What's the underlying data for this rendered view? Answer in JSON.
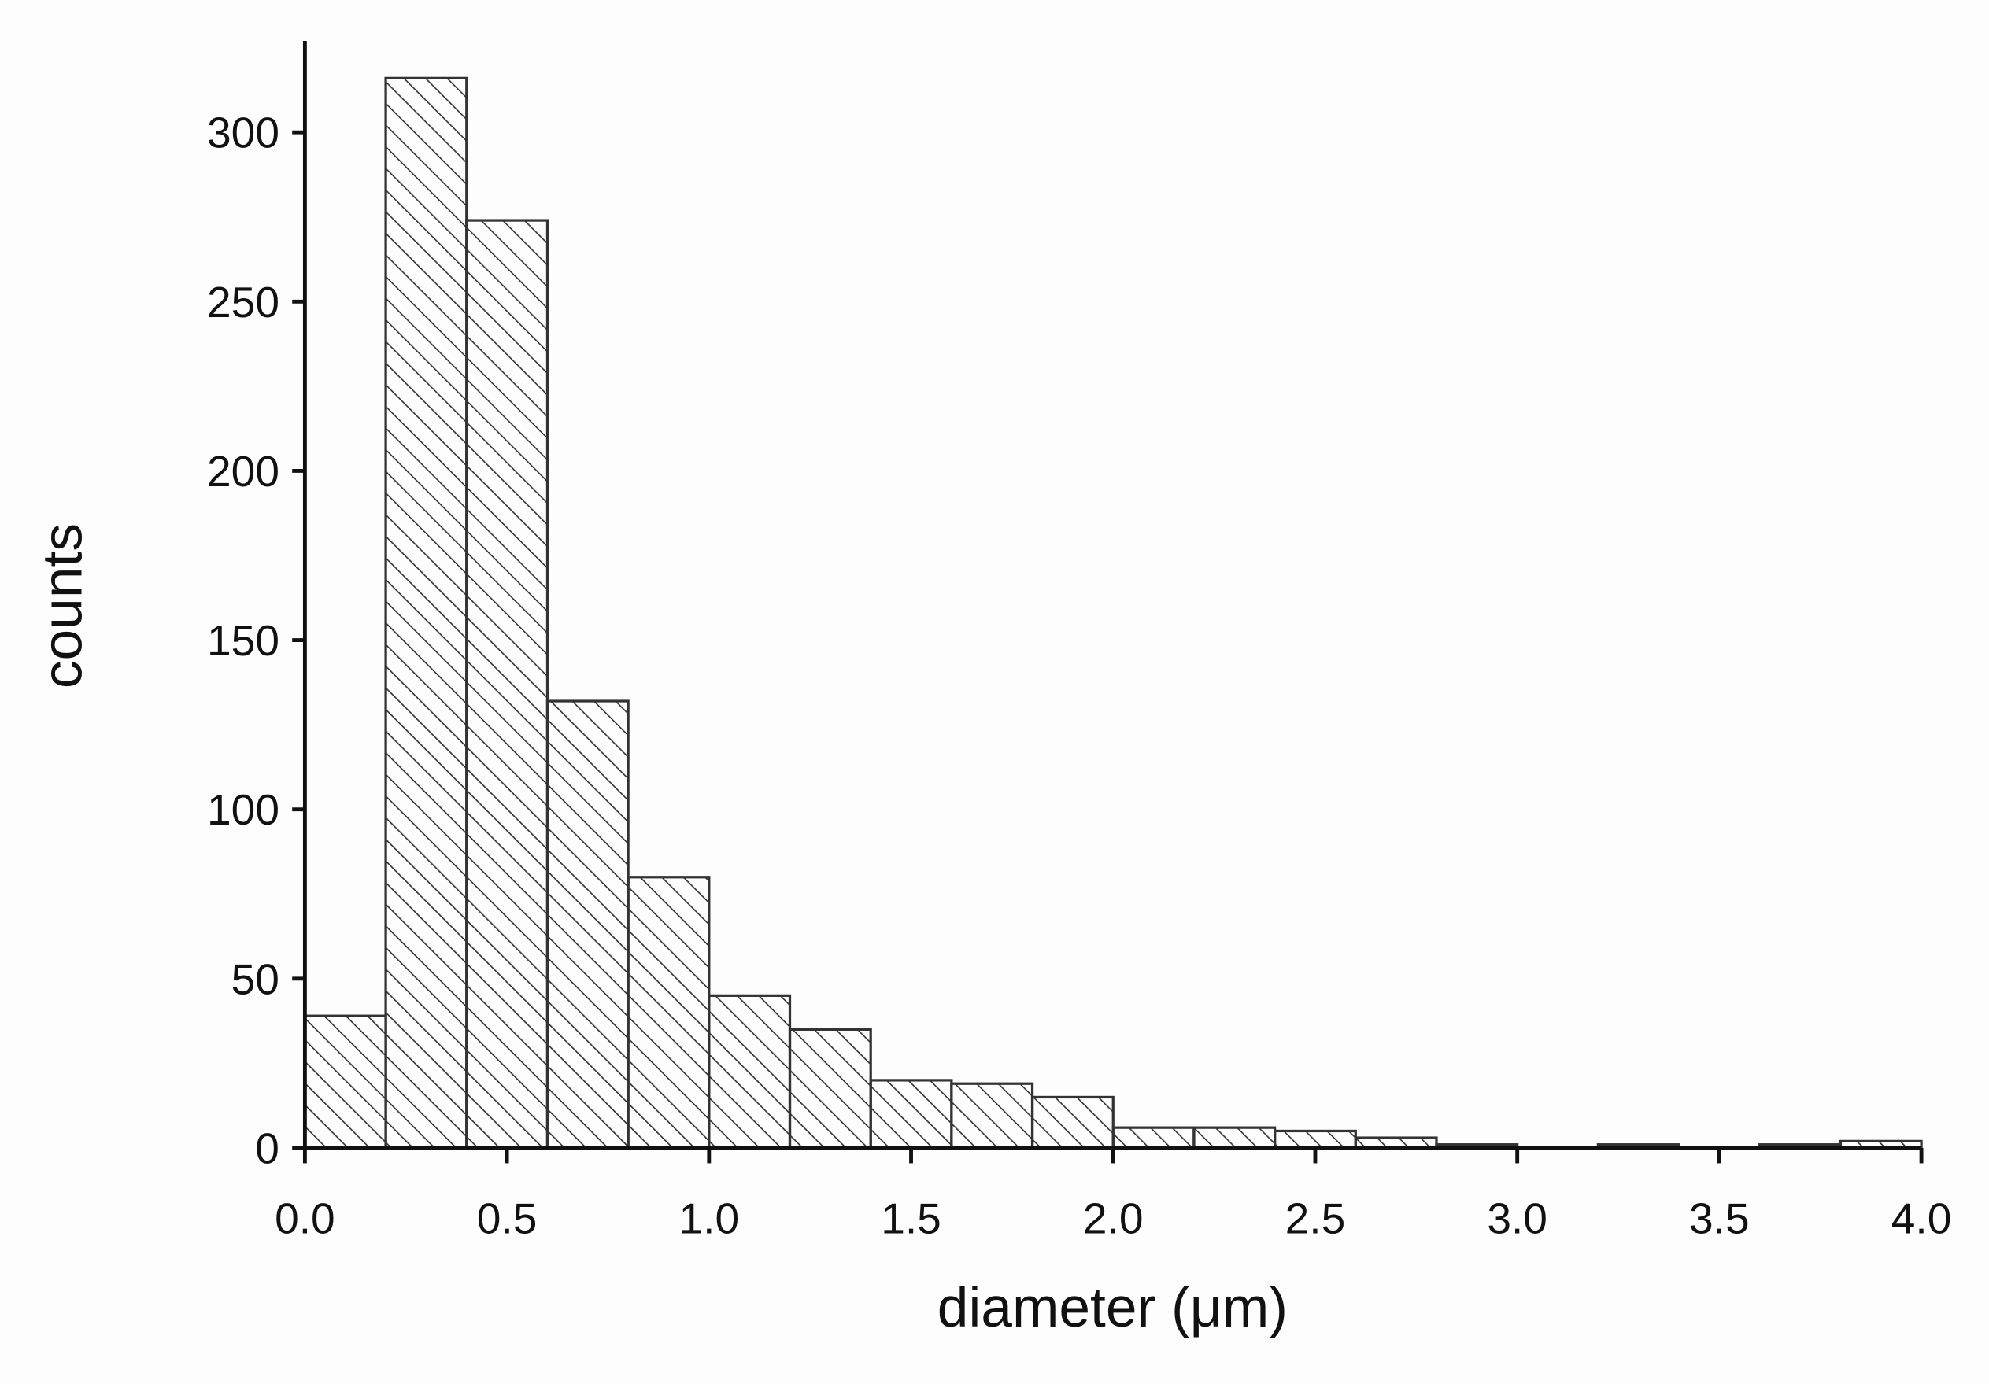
{
  "chart_data": {
    "type": "histogram",
    "x_label": "diameter (μm)",
    "y_label": "counts",
    "bins": [
      0,
      0.2,
      0.4,
      0.6,
      0.8,
      1,
      1.2,
      1.4,
      1.6,
      1.8,
      2,
      2.2,
      2.4,
      2.6,
      2.8,
      3,
      3.2,
      3.4,
      3.6,
      3.8,
      4
    ],
    "values": [
      39,
      316,
      274,
      132,
      80,
      45,
      35,
      20,
      19,
      15,
      6,
      6,
      5,
      3,
      1,
      0,
      1,
      0,
      1,
      2
    ],
    "color": "#333333",
    "xlim": [
      0,
      4
    ],
    "ylim": [
      0,
      327
    ],
    "xticks": [
      {
        "value": 0,
        "label": "0.0"
      },
      0.5,
      {
        "value": 1,
        "label": "1.0"
      },
      1.5,
      {
        "value": 2,
        "label": "2.0"
      },
      2.5,
      {
        "value": 3,
        "label": "3.0"
      },
      3.5,
      {
        "value": 4,
        "label": "4.0"
      }
    ],
    "yticks": [
      0,
      50,
      100,
      150,
      200,
      250,
      300
    ]
  }
}
